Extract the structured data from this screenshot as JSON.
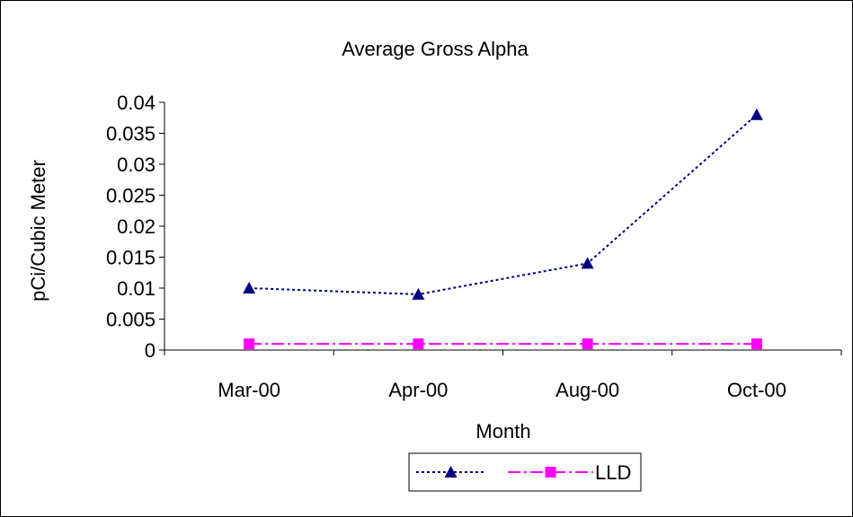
{
  "chart_data": {
    "type": "line",
    "title": "Average Gross Alpha",
    "xlabel": "Month",
    "ylabel": "pCi/Cubic Meter",
    "categories": [
      "Mar-00",
      "Apr-00",
      "Aug-00",
      "Oct-00"
    ],
    "ylim": [
      0,
      0.04
    ],
    "yticks": [
      "0",
      "0.005",
      "0.01",
      "0.015",
      "0.02",
      "0.025",
      "0.03",
      "0.035",
      "0.04"
    ],
    "grid": false,
    "legend_position": "bottom",
    "series": [
      {
        "name": "",
        "values": [
          0.01,
          0.009,
          0.014,
          0.038
        ],
        "color": "#000080",
        "marker": "triangle",
        "line_style": "dotted"
      },
      {
        "name": "LLD",
        "values": [
          0.001,
          0.001,
          0.001,
          0.001
        ],
        "color": "#ff00ff",
        "marker": "square",
        "line_style": "dash-dot"
      }
    ]
  }
}
